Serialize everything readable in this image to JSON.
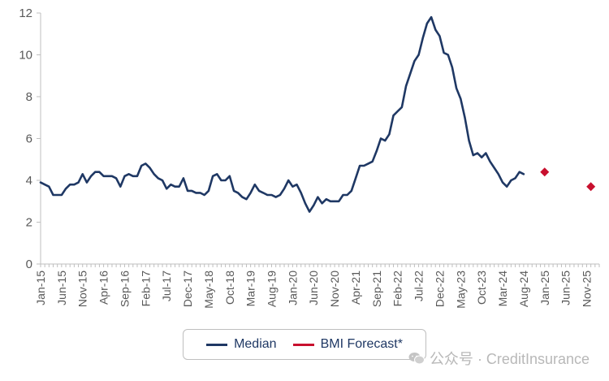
{
  "chart_data": {
    "type": "line",
    "ylim": [
      0,
      12
    ],
    "yticks": [
      "0",
      "2",
      "4",
      "6",
      "8",
      "10",
      "12"
    ],
    "xticks": [
      "Jan-15",
      "Jun-15",
      "Nov-15",
      "Apr-16",
      "Sep-16",
      "Feb-17",
      "Jul-17",
      "Dec-17",
      "May-18",
      "Oct-18",
      "Mar-19",
      "Aug-19",
      "Jan-20",
      "Jun-20",
      "Nov-20",
      "Apr-21",
      "Sep-21",
      "Feb-22",
      "Jul-22",
      "Dec-22",
      "May-23",
      "Oct-23",
      "Mar-24",
      "Aug-24",
      "Jan-25",
      "Jun-25",
      "Nov-25"
    ],
    "grid": false,
    "legend_position": "bottom",
    "series": [
      {
        "name": "Median",
        "color": "#1f3864",
        "style": "line",
        "x": [
          0,
          1,
          2,
          3,
          4,
          5,
          6,
          7,
          8,
          9,
          10,
          11,
          12,
          13,
          14,
          15,
          16,
          17,
          18,
          19,
          20,
          21,
          22,
          23,
          24,
          25,
          26,
          27,
          28,
          29,
          30,
          31,
          32,
          33,
          34,
          35,
          36,
          37,
          38,
          39,
          40,
          41,
          42,
          43,
          44,
          45,
          46,
          47,
          48,
          49,
          50,
          51,
          52,
          53,
          54,
          55,
          56,
          57,
          58,
          59,
          60,
          61,
          62,
          63,
          64,
          65,
          66,
          67,
          68,
          69,
          70,
          71,
          72,
          73,
          74,
          75,
          76,
          77,
          78,
          79,
          80,
          81,
          82,
          83,
          84,
          85,
          86,
          87,
          88,
          89,
          90,
          91,
          92,
          93,
          94,
          95,
          96,
          97,
          98,
          99,
          100,
          101,
          102,
          103,
          104,
          105,
          106,
          107,
          108,
          109,
          110,
          111,
          112,
          113,
          114,
          115
        ],
        "values": [
          3.9,
          3.8,
          3.7,
          3.3,
          3.3,
          3.3,
          3.6,
          3.8,
          3.8,
          3.9,
          4.3,
          3.9,
          4.2,
          4.4,
          4.4,
          4.2,
          4.2,
          4.2,
          4.1,
          3.7,
          4.2,
          4.3,
          4.2,
          4.2,
          4.7,
          4.8,
          4.6,
          4.3,
          4.1,
          4.0,
          3.6,
          3.8,
          3.7,
          3.7,
          4.1,
          3.5,
          3.5,
          3.4,
          3.4,
          3.3,
          3.5,
          4.2,
          4.3,
          4.0,
          4.0,
          4.2,
          3.5,
          3.4,
          3.2,
          3.1,
          3.4,
          3.8,
          3.5,
          3.4,
          3.3,
          3.3,
          3.2,
          3.3,
          3.6,
          4.0,
          3.7,
          3.8,
          3.4,
          2.9,
          2.5,
          2.8,
          3.2,
          2.9,
          3.1,
          3.0,
          3.0,
          3.0,
          3.3,
          3.3,
          3.5,
          4.1,
          4.7,
          4.7,
          4.8,
          4.9,
          5.4,
          6.0,
          5.9,
          6.2,
          7.1,
          7.3,
          7.5,
          8.5,
          9.1,
          9.7,
          10.0,
          10.8,
          11.5,
          11.8,
          11.2,
          10.9,
          10.1,
          10.0,
          9.4,
          8.4,
          7.9,
          7.0,
          5.9,
          5.2,
          5.3,
          5.1,
          5.3,
          4.9,
          4.6,
          4.3,
          3.9,
          3.7,
          4.0,
          4.1,
          4.4,
          4.3
        ]
      },
      {
        "name": "BMI Forecast*",
        "color": "#c8102e",
        "style": "marker",
        "x": [
          120,
          131
        ],
        "values": [
          4.4,
          3.7
        ]
      }
    ]
  },
  "legend": {
    "items": [
      {
        "label": "Median",
        "color": "#1f3864"
      },
      {
        "label": "BMI Forecast*",
        "color": "#c8102e"
      }
    ]
  },
  "watermark": {
    "text": "公众号 · CreditInsurance",
    "icon": "wechat-icon"
  }
}
